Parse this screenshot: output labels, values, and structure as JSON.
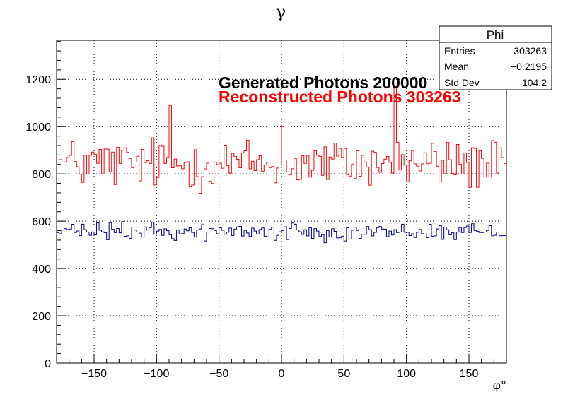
{
  "chart_data": {
    "type": "histogram",
    "title": "γ",
    "xlabel": "φ°",
    "ylabel": "",
    "xlim": [
      -180,
      180
    ],
    "ylim": [
      0,
      1365
    ],
    "xticks": [
      -150,
      -100,
      -50,
      0,
      50,
      100,
      150
    ],
    "xtick_labels": [
      "−150",
      "−100",
      "−50",
      "0",
      "50",
      "100",
      "150"
    ],
    "yticks": [
      0,
      200,
      400,
      600,
      800,
      1000,
      1200
    ],
    "ytick_labels": [
      "0",
      "200",
      "400",
      "600",
      "800",
      "1000",
      "1200"
    ],
    "grid": true,
    "bin_width": 2,
    "series": [
      {
        "name": "Reconstructed Photons 303263",
        "color": "#ff0000",
        "mean": 843,
        "spread": 55,
        "spikes": [
          {
            "x": -180,
            "y": 960
          },
          {
            "x": -90,
            "y": 1090
          },
          {
            "x": 0,
            "y": 1000
          },
          {
            "x": 90,
            "y": 1170
          }
        ]
      },
      {
        "name": "Generated Photons 200000",
        "color": "#000080",
        "mean": 556,
        "spread": 18,
        "spikes": []
      }
    ],
    "legend": [
      {
        "label": "Generated Photons 200000",
        "color": "#000000"
      },
      {
        "label": "Reconstructed Photons 303263",
        "color": "#ff0000"
      }
    ],
    "stats": {
      "title": "Phi",
      "rows": [
        {
          "label": "Entries",
          "value": "303263"
        },
        {
          "label": "Mean",
          "value": "−0.2195"
        },
        {
          "label": "Std Dev",
          "value": "104.2"
        }
      ]
    }
  }
}
